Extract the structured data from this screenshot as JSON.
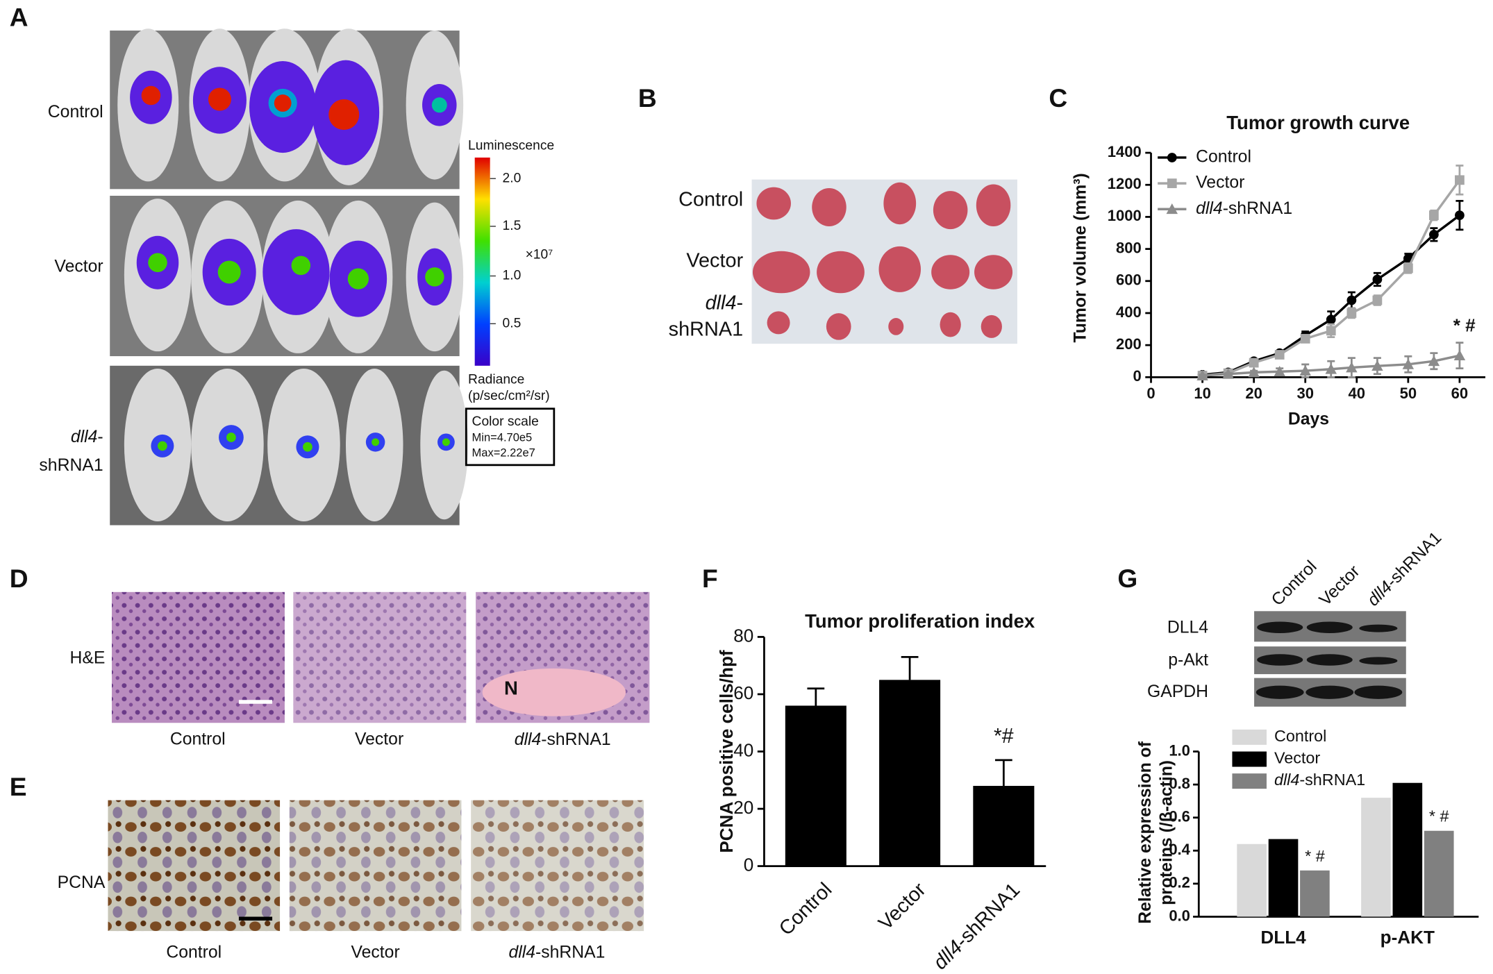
{
  "panel_a": {
    "label": "A",
    "rows": [
      "Control",
      "Vector",
      [
        "dll4-",
        "shRNA1"
      ]
    ],
    "colorbar": {
      "title": "Luminescence",
      "ticks": [
        "2.0",
        "1.5",
        "1.0",
        "0.5"
      ],
      "multiplier": "×10⁷",
      "unit": [
        "Radiance",
        "(p/sec/cm²/sr)"
      ],
      "scale_box": [
        "Color scale",
        "Min=4.70e5",
        "Max=2.22e7"
      ]
    }
  },
  "panel_b": {
    "label": "B",
    "rows": [
      "Control",
      "Vector",
      [
        "dll4-",
        "shRNA1"
      ]
    ]
  },
  "panel_d": {
    "label": "D",
    "row": "H&E",
    "columns": [
      "Control",
      "Vector",
      "dll4-shRNA1"
    ],
    "marker": "N"
  },
  "panel_e": {
    "label": "E",
    "row": "PCNA",
    "columns": [
      "Control",
      "Vector",
      "dll4-shRNA1"
    ]
  },
  "panel_g_blot": {
    "label": "G",
    "columns": [
      "Control",
      "Vector",
      "dll4-shRNA1"
    ],
    "rows": [
      "DLL4",
      "p-Akt",
      "GAPDH"
    ]
  },
  "chart_data": [
    {
      "type": "line",
      "panel": "C",
      "title": "Tumor growth curve",
      "ylabel": "Tumor volume (mm³)",
      "xlabel": "Days",
      "annotation": "* #",
      "x": [
        10,
        15,
        20,
        25,
        30,
        35,
        39,
        44,
        50,
        55,
        60
      ],
      "series": [
        {
          "name": "Control",
          "color": "#000000",
          "marker": "circle",
          "values": [
            15,
            30,
            100,
            150,
            260,
            360,
            480,
            610,
            740,
            890,
            1010
          ],
          "errors": [
            5,
            5,
            10,
            10,
            25,
            50,
            50,
            40,
            30,
            40,
            90
          ]
        },
        {
          "name": "Vector",
          "color": "#a6a6a6",
          "marker": "square",
          "values": [
            10,
            25,
            90,
            140,
            240,
            290,
            400,
            480,
            680,
            1010,
            1230
          ],
          "errors": [
            5,
            5,
            10,
            10,
            20,
            40,
            30,
            30,
            30,
            30,
            90
          ]
        },
        {
          "name": "dll4-shRNA1",
          "color": "#8c8c8c",
          "marker": "triangle",
          "values": [
            10,
            20,
            30,
            35,
            40,
            50,
            60,
            70,
            80,
            100,
            135
          ],
          "errors": [
            5,
            5,
            10,
            20,
            40,
            50,
            60,
            50,
            50,
            50,
            80
          ]
        }
      ],
      "xlim": [
        0,
        65
      ],
      "xticks": [
        0,
        10,
        20,
        30,
        40,
        50,
        60
      ],
      "ylim": [
        0,
        1400
      ],
      "yticks": [
        0,
        200,
        400,
        600,
        800,
        1000,
        1200,
        1400
      ]
    },
    {
      "type": "bar",
      "panel": "F",
      "title": "Tumor proliferation index",
      "ylabel": "PCNA positive cells/hpf",
      "annotation": "*#",
      "categories": [
        "Control",
        "Vector",
        "dll4-shRNA1"
      ],
      "values": [
        56,
        65,
        28
      ],
      "errors": [
        6,
        8,
        9
      ],
      "color": "#000000",
      "ylim": [
        0,
        80
      ],
      "yticks": [
        0,
        20,
        40,
        60,
        80
      ]
    },
    {
      "type": "grouped_bar",
      "ylabel": [
        "Relative expression of",
        "proteins (/β-actin)"
      ],
      "annotations": [
        "* #",
        "* #"
      ],
      "categories": [
        "DLL4",
        "p-AKT"
      ],
      "series": [
        {
          "name": "Control",
          "color": "#d9d9d9",
          "values": [
            0.44,
            0.72
          ]
        },
        {
          "name": "Vector",
          "color": "#000000",
          "values": [
            0.47,
            0.81
          ]
        },
        {
          "name": "dll4-shRNA1",
          "color": "#808080",
          "values": [
            0.28,
            0.52
          ]
        }
      ],
      "ylim": [
        0,
        1
      ],
      "yticks": [
        {
          "value": 0,
          "label": "0.0"
        },
        0.2,
        0.4,
        0.6,
        0.8,
        {
          "value": 1,
          "label": "1.0"
        }
      ]
    }
  ]
}
